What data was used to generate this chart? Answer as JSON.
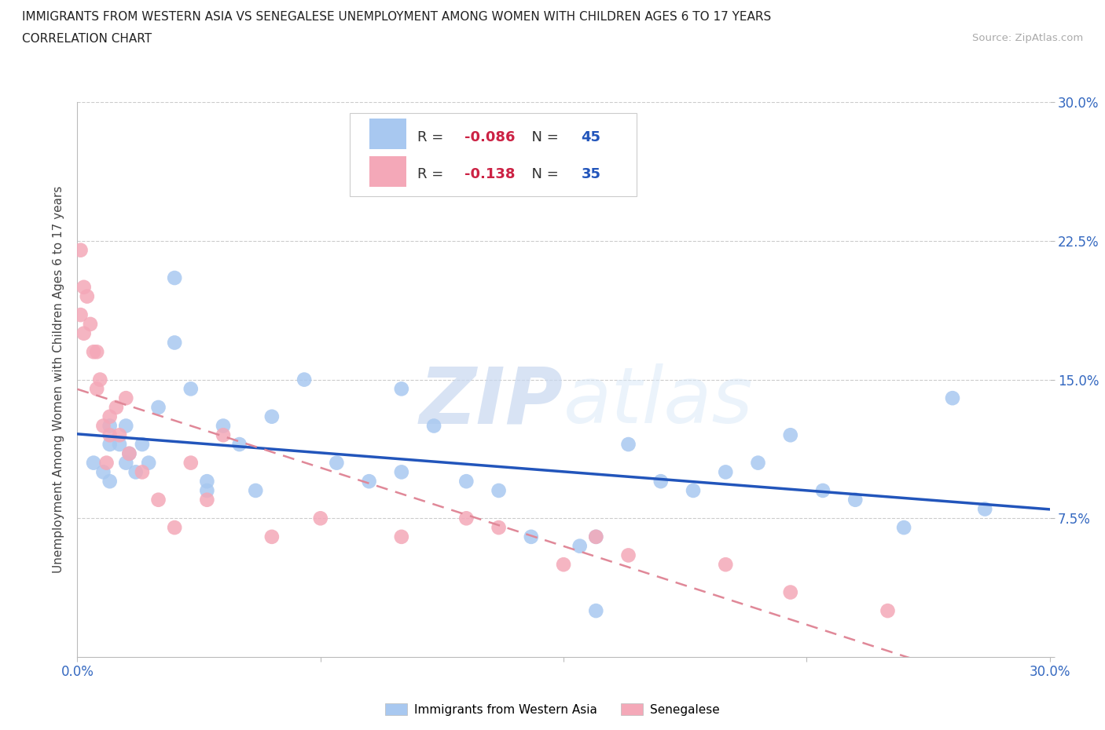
{
  "title_line1": "IMMIGRANTS FROM WESTERN ASIA VS SENEGALESE UNEMPLOYMENT AMONG WOMEN WITH CHILDREN AGES 6 TO 17 YEARS",
  "title_line2": "CORRELATION CHART",
  "source": "Source: ZipAtlas.com",
  "ylabel": "Unemployment Among Women with Children Ages 6 to 17 years",
  "xlim": [
    0.0,
    0.3
  ],
  "ylim": [
    0.0,
    0.3
  ],
  "blue_color": "#a8c8f0",
  "pink_color": "#f4a8b8",
  "blue_line_color": "#2255bb",
  "pink_line_color": "#e08898",
  "blue_label": "Immigrants from Western Asia",
  "pink_label": "Senegalese",
  "R_blue": -0.086,
  "N_blue": 45,
  "R_pink": -0.138,
  "N_pink": 35,
  "tick_color": "#3468c0",
  "blue_x": [
    0.005,
    0.008,
    0.01,
    0.01,
    0.01,
    0.013,
    0.015,
    0.015,
    0.016,
    0.018,
    0.02,
    0.022,
    0.025,
    0.03,
    0.03,
    0.035,
    0.04,
    0.04,
    0.045,
    0.05,
    0.055,
    0.06,
    0.07,
    0.08,
    0.09,
    0.1,
    0.1,
    0.11,
    0.12,
    0.13,
    0.14,
    0.155,
    0.16,
    0.17,
    0.18,
    0.19,
    0.2,
    0.21,
    0.22,
    0.23,
    0.24,
    0.255,
    0.27,
    0.28,
    0.16
  ],
  "blue_y": [
    0.105,
    0.1,
    0.115,
    0.095,
    0.125,
    0.115,
    0.125,
    0.105,
    0.11,
    0.1,
    0.115,
    0.105,
    0.135,
    0.205,
    0.17,
    0.145,
    0.09,
    0.095,
    0.125,
    0.115,
    0.09,
    0.13,
    0.15,
    0.105,
    0.095,
    0.145,
    0.1,
    0.125,
    0.095,
    0.09,
    0.065,
    0.06,
    0.065,
    0.115,
    0.095,
    0.09,
    0.1,
    0.105,
    0.12,
    0.09,
    0.085,
    0.07,
    0.14,
    0.08,
    0.025
  ],
  "pink_x": [
    0.001,
    0.001,
    0.002,
    0.002,
    0.003,
    0.004,
    0.005,
    0.006,
    0.006,
    0.007,
    0.008,
    0.009,
    0.01,
    0.01,
    0.012,
    0.013,
    0.015,
    0.016,
    0.02,
    0.025,
    0.03,
    0.035,
    0.04,
    0.045,
    0.06,
    0.075,
    0.1,
    0.12,
    0.13,
    0.15,
    0.17,
    0.2,
    0.22,
    0.25,
    0.16
  ],
  "pink_y": [
    0.22,
    0.185,
    0.2,
    0.175,
    0.195,
    0.18,
    0.165,
    0.165,
    0.145,
    0.15,
    0.125,
    0.105,
    0.13,
    0.12,
    0.135,
    0.12,
    0.14,
    0.11,
    0.1,
    0.085,
    0.07,
    0.105,
    0.085,
    0.12,
    0.065,
    0.075,
    0.065,
    0.075,
    0.07,
    0.05,
    0.055,
    0.05,
    0.035,
    0.025,
    0.065
  ]
}
